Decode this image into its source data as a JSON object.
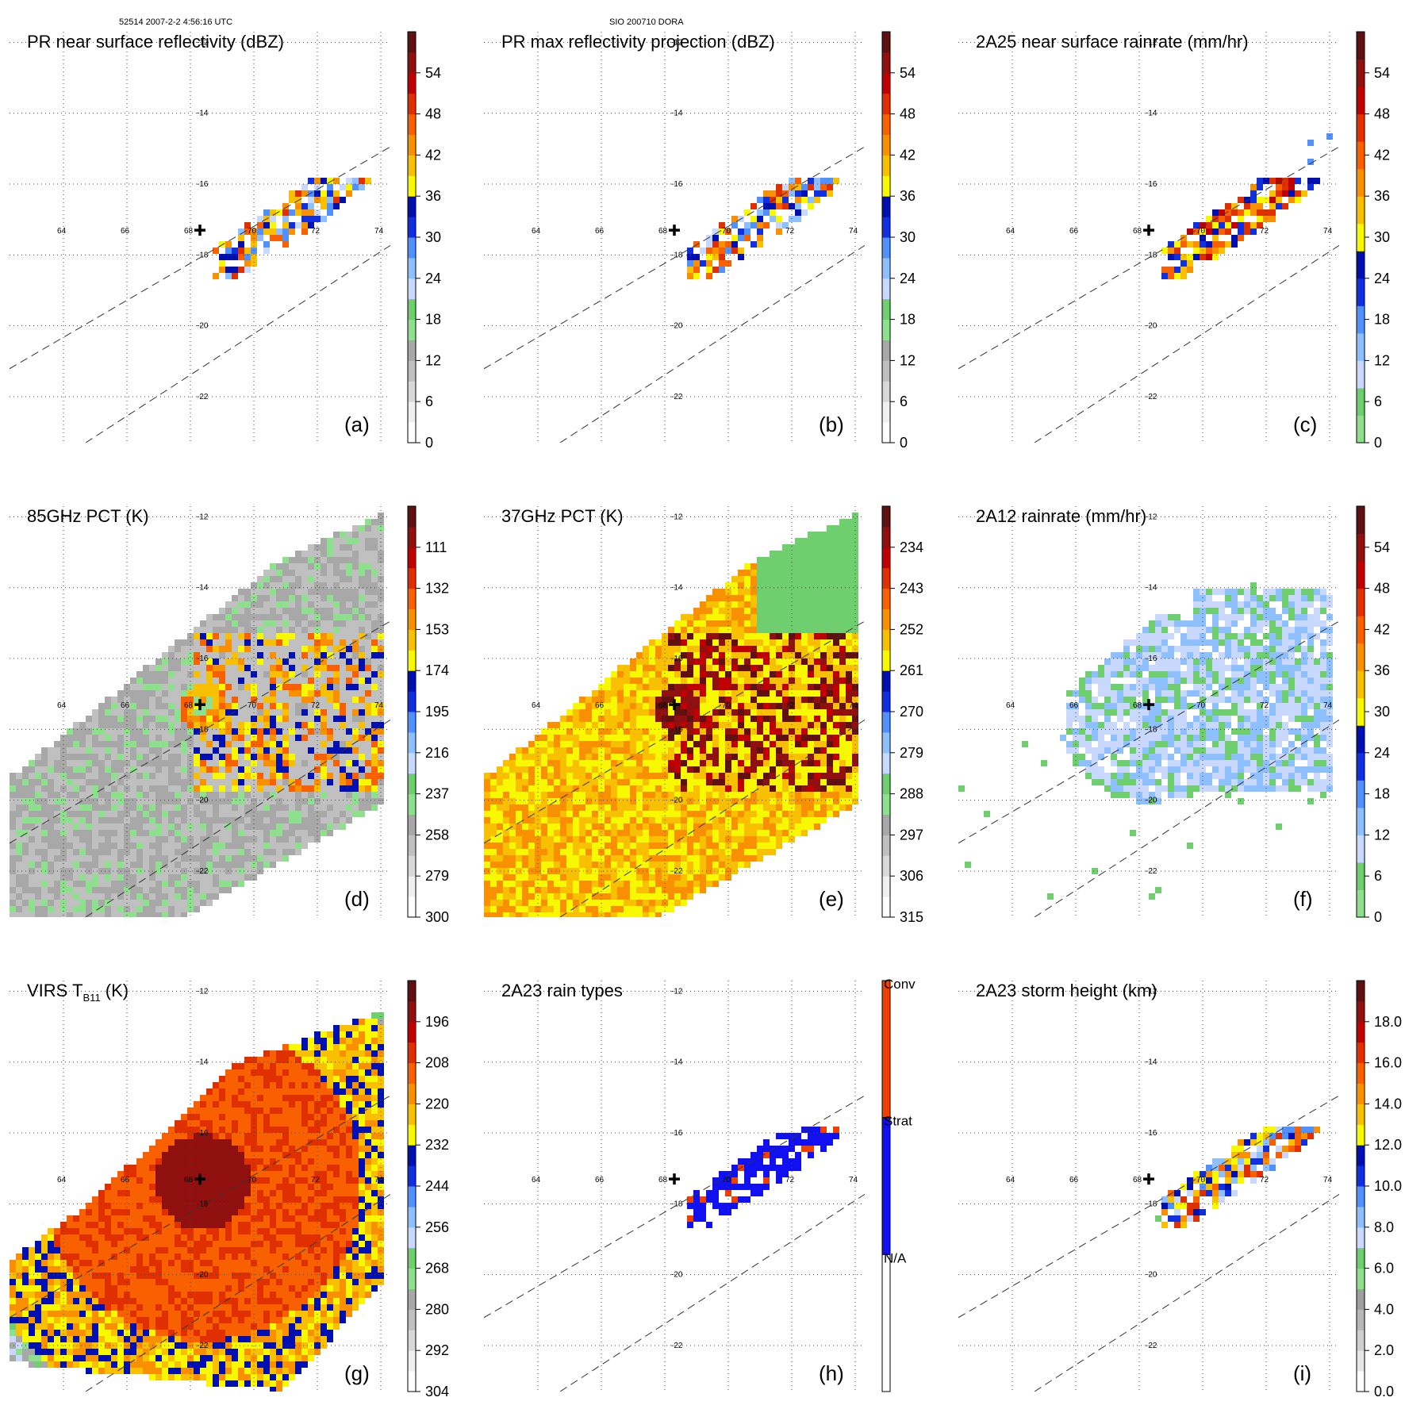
{
  "header": {
    "left": "52514 2007-2-2 4:56:16 UTC",
    "center": "SIO 200710 DORA"
  },
  "map": {
    "lon_ticks": [
      "64",
      "66",
      "68",
      "70",
      "72",
      "74"
    ],
    "lat_ticks": [
      "-12",
      "-14",
      "-16",
      "-18",
      "-20",
      "-22"
    ],
    "lon_range": [
      62.3,
      74.3
    ],
    "lat_range": [
      -11.7,
      -23.3
    ],
    "storm_center": {
      "lon": 68.3,
      "lat": -17.3,
      "marker": "cross-icon"
    },
    "swath_edges": [
      "dashed",
      "dashed"
    ]
  },
  "colors": {
    "dbz": [
      "#ffffff",
      "#f0f0f0",
      "#d8d8d8",
      "#c0c0c0",
      "#a8a8a8",
      "#8ee08e",
      "#6fcf6f",
      "#c8d8ff",
      "#8ec0ff",
      "#5090ff",
      "#1030e0",
      "#0010b0",
      "#f8f800",
      "#f8c000",
      "#f89000",
      "#f86000",
      "#e03000",
      "#c00000",
      "#901010",
      "#601010"
    ],
    "pct": [
      "#ffffff",
      "#f0f0f0",
      "#d8d8d8",
      "#c0c0c0",
      "#a8a8a8",
      "#8ee08e",
      "#6fcf6f",
      "#c8d8ff",
      "#8ec0ff",
      "#5090ff",
      "#1030e0",
      "#0010b0",
      "#f8f800",
      "#f8c000",
      "#f89000",
      "#f86000",
      "#e03000",
      "#c00000",
      "#901010",
      "#601010"
    ],
    "rain": [
      "#8ee08e",
      "#6fcf6f",
      "#c8d8ff",
      "#8ec0ff",
      "#5090ff",
      "#1030e0",
      "#0010b0",
      "#f8f800",
      "#f8c000",
      "#f89000",
      "#f86000",
      "#e03000",
      "#c00000",
      "#901010",
      "#601010"
    ],
    "types": [
      "#ffffff",
      "#1010f0",
      "#f04000"
    ],
    "height": [
      "#ffffff",
      "#e8e8e8",
      "#d0d0d0",
      "#b8b8b8",
      "#a0a0a0",
      "#8ee08e",
      "#6fcf6f",
      "#c8d8ff",
      "#8ec0ff",
      "#5090ff",
      "#1030e0",
      "#0010b0",
      "#f8f800",
      "#f8c000",
      "#f89000",
      "#f86000",
      "#e03000",
      "#c00000",
      "#901010",
      "#601010"
    ]
  },
  "chart_data": [
    {
      "id": "a",
      "type": "heatmap",
      "title": "PR near surface reflectivity (dBZ)",
      "panel_label": "(a)",
      "colorbar": {
        "ticks": [
          "54",
          "48",
          "42",
          "36",
          "30",
          "24",
          "18",
          "12",
          "6",
          "0"
        ],
        "scale": "dbz"
      },
      "field": "pr_near_surface",
      "swath": "pr",
      "intensity": 0.6
    },
    {
      "id": "b",
      "type": "heatmap",
      "title": "PR max reflectivity projection (dBZ)",
      "panel_label": "(b)",
      "colorbar": {
        "ticks": [
          "54",
          "48",
          "42",
          "36",
          "30",
          "24",
          "18",
          "12",
          "6",
          "0"
        ],
        "scale": "dbz"
      },
      "field": "pr_max",
      "swath": "pr",
      "intensity": 0.75
    },
    {
      "id": "c",
      "type": "heatmap",
      "title": "2A25 near surface rainrate (mm/hr)",
      "panel_label": "(c)",
      "colorbar": {
        "ticks": [
          "54",
          "48",
          "42",
          "36",
          "30",
          "24",
          "18",
          "12",
          "6",
          "0"
        ],
        "scale": "rain"
      },
      "field": "rain_2a25",
      "swath": "pr",
      "intensity": 0.35
    },
    {
      "id": "d",
      "type": "heatmap",
      "title": "85GHz PCT (K)",
      "panel_label": "(d)",
      "colorbar": {
        "ticks": [
          "111",
          "132",
          "153",
          "174",
          "195",
          "216",
          "237",
          "258",
          "279",
          "300"
        ],
        "scale": "pct"
      },
      "field": "pct85",
      "swath": "tmi",
      "intensity": 0.5
    },
    {
      "id": "e",
      "type": "heatmap",
      "title": "37GHz PCT (K)",
      "panel_label": "(e)",
      "colorbar": {
        "ticks": [
          "234",
          "243",
          "252",
          "261",
          "270",
          "279",
          "288",
          "297",
          "306",
          "315"
        ],
        "scale": "pct"
      },
      "field": "pct37",
      "swath": "tmi",
      "intensity": 0.55
    },
    {
      "id": "f",
      "type": "heatmap",
      "title": "2A12 rainrate (mm/hr)",
      "panel_label": "(f)",
      "colorbar": {
        "ticks": [
          "54",
          "48",
          "42",
          "36",
          "30",
          "24",
          "18",
          "12",
          "6",
          "0"
        ],
        "scale": "rain"
      },
      "field": "rain_2a12",
      "swath": "tmi",
      "intensity": 0.35
    },
    {
      "id": "g",
      "type": "heatmap",
      "title": "VIRS T",
      "title_sub": "B11",
      "title_suffix": " (K)",
      "panel_label": "(g)",
      "colorbar": {
        "ticks": [
          "196",
          "208",
          "220",
          "232",
          "244",
          "256",
          "268",
          "280",
          "292",
          "304"
        ],
        "scale": "pct"
      },
      "field": "virs",
      "swath": "virs",
      "intensity": 0.85
    },
    {
      "id": "h",
      "type": "heatmap",
      "title": "2A23 rain types",
      "panel_label": "(h)",
      "colorbar": {
        "ticks": [
          "Conv",
          "Strat",
          "N/A"
        ],
        "scale": "types"
      },
      "field": "rain_types",
      "swath": "pr",
      "intensity": 0.6
    },
    {
      "id": "i",
      "type": "heatmap",
      "title": "2A23 storm height (km)",
      "panel_label": "(i)",
      "colorbar": {
        "ticks": [
          "18.0",
          "16.0",
          "14.0",
          "12.0",
          "10.0",
          "8.0",
          "6.0",
          "4.0",
          "2.0",
          "0.0"
        ],
        "scale": "height"
      },
      "field": "storm_height",
      "swath": "pr",
      "intensity": 0.5
    }
  ]
}
